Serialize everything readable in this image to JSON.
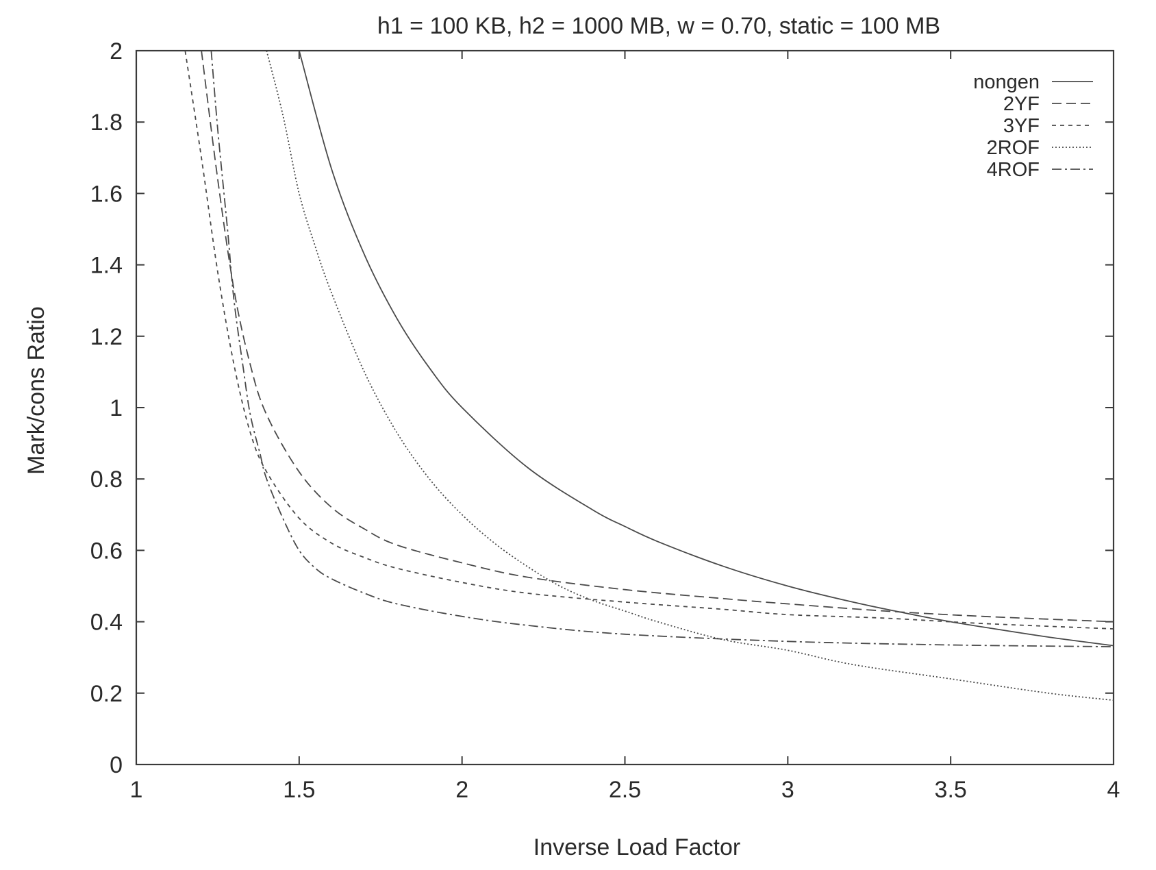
{
  "chart_data": {
    "type": "line",
    "title": "h1 = 100 KB, h2 = 1000 MB, w = 0.70, static = 100 MB",
    "xlabel": "Inverse Load Factor",
    "ylabel": "Mark/cons Ratio",
    "xlim": [
      1,
      4
    ],
    "ylim": [
      0,
      2
    ],
    "x_ticks": [
      "1",
      "1.5",
      "2",
      "2.5",
      "3",
      "3.5",
      "4"
    ],
    "y_ticks": [
      "0",
      "0.2",
      "0.4",
      "0.6",
      "0.8",
      "1",
      "1.2",
      "1.4",
      "1.6",
      "1.8",
      "2"
    ],
    "legend_position": "top-right",
    "grid": false,
    "series": [
      {
        "name": "nongen",
        "dash": "solid",
        "x": [
          1.5,
          1.6,
          1.7,
          1.8,
          1.9,
          2.0,
          2.2,
          2.4,
          2.5,
          2.6,
          2.8,
          3.0,
          3.2,
          3.4,
          3.5,
          3.6,
          3.8,
          4.0
        ],
        "y": [
          2.0,
          1.667,
          1.429,
          1.25,
          1.111,
          1.0,
          0.833,
          0.714,
          0.667,
          0.625,
          0.556,
          0.5,
          0.455,
          0.417,
          0.4,
          0.385,
          0.357,
          0.333
        ]
      },
      {
        "name": "2YF",
        "dash": "long-dash",
        "x": [
          1.2,
          1.25,
          1.3,
          1.35,
          1.4,
          1.5,
          1.6,
          1.7,
          1.8,
          2.0,
          2.2,
          2.5,
          2.8,
          3.0,
          3.3,
          3.6,
          4.0
        ],
        "y": [
          2.0,
          1.64,
          1.33,
          1.12,
          0.98,
          0.82,
          0.72,
          0.66,
          0.615,
          0.565,
          0.525,
          0.49,
          0.465,
          0.45,
          0.43,
          0.415,
          0.4
        ]
      },
      {
        "name": "3YF",
        "dash": "short-dash",
        "x": [
          1.15,
          1.2,
          1.25,
          1.3,
          1.35,
          1.4,
          1.5,
          1.6,
          1.7,
          1.8,
          2.0,
          2.2,
          2.5,
          2.8,
          3.0,
          3.3,
          3.6,
          4.0
        ],
        "y": [
          2.0,
          1.7,
          1.38,
          1.12,
          0.93,
          0.82,
          0.69,
          0.62,
          0.58,
          0.55,
          0.51,
          0.48,
          0.455,
          0.435,
          0.42,
          0.41,
          0.395,
          0.38
        ]
      },
      {
        "name": "2ROF",
        "dash": "dotted",
        "x": [
          1.4,
          1.45,
          1.5,
          1.55,
          1.6,
          1.7,
          1.8,
          1.9,
          2.0,
          2.1,
          2.2,
          2.3,
          2.4,
          2.5,
          2.6,
          2.8,
          3.0,
          3.2,
          3.5,
          3.8,
          4.0
        ],
        "y": [
          2.0,
          1.82,
          1.6,
          1.45,
          1.32,
          1.1,
          0.93,
          0.8,
          0.7,
          0.62,
          0.555,
          0.5,
          0.46,
          0.43,
          0.4,
          0.35,
          0.32,
          0.28,
          0.24,
          0.2,
          0.18
        ]
      },
      {
        "name": "4ROF",
        "dash": "dash-dot",
        "x": [
          1.23,
          1.25,
          1.28,
          1.3,
          1.33,
          1.35,
          1.38,
          1.4,
          1.45,
          1.5,
          1.55,
          1.6,
          1.7,
          1.8,
          2.0,
          2.2,
          2.5,
          3.0,
          3.5,
          4.0
        ],
        "y": [
          2.0,
          1.78,
          1.5,
          1.3,
          1.1,
          0.98,
          0.87,
          0.8,
          0.69,
          0.6,
          0.55,
          0.52,
          0.48,
          0.45,
          0.415,
          0.39,
          0.365,
          0.345,
          0.335,
          0.33
        ]
      }
    ]
  }
}
